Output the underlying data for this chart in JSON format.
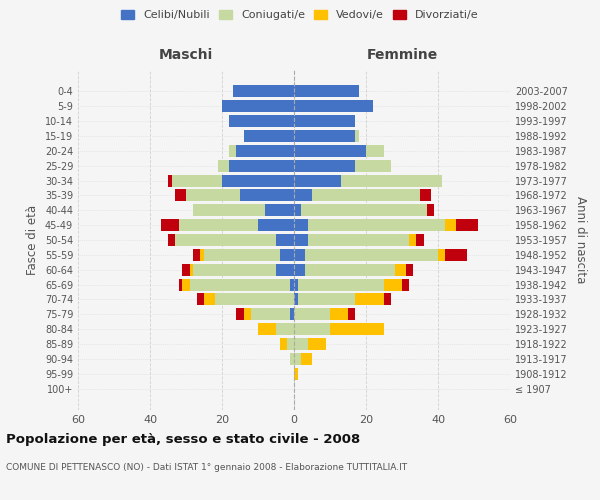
{
  "age_groups": [
    "100+",
    "95-99",
    "90-94",
    "85-89",
    "80-84",
    "75-79",
    "70-74",
    "65-69",
    "60-64",
    "55-59",
    "50-54",
    "45-49",
    "40-44",
    "35-39",
    "30-34",
    "25-29",
    "20-24",
    "15-19",
    "10-14",
    "5-9",
    "0-4"
  ],
  "birth_years": [
    "≤ 1907",
    "1908-1912",
    "1913-1917",
    "1918-1922",
    "1923-1927",
    "1928-1932",
    "1933-1937",
    "1938-1942",
    "1943-1947",
    "1948-1952",
    "1953-1957",
    "1958-1962",
    "1963-1967",
    "1968-1972",
    "1973-1977",
    "1978-1982",
    "1983-1987",
    "1988-1992",
    "1993-1997",
    "1998-2002",
    "2003-2007"
  ],
  "males": {
    "celibi": [
      0,
      0,
      0,
      0,
      0,
      1,
      0,
      1,
      5,
      4,
      5,
      10,
      8,
      15,
      20,
      18,
      16,
      14,
      18,
      20,
      17
    ],
    "coniugati": [
      0,
      0,
      1,
      2,
      5,
      11,
      22,
      28,
      23,
      21,
      28,
      22,
      20,
      15,
      14,
      3,
      2,
      0,
      0,
      0,
      0
    ],
    "vedovi": [
      0,
      0,
      0,
      2,
      5,
      2,
      3,
      2,
      1,
      1,
      0,
      0,
      0,
      0,
      0,
      0,
      0,
      0,
      0,
      0,
      0
    ],
    "divorziati": [
      0,
      0,
      0,
      0,
      0,
      2,
      2,
      1,
      2,
      2,
      2,
      5,
      0,
      3,
      1,
      0,
      0,
      0,
      0,
      0,
      0
    ]
  },
  "females": {
    "nubili": [
      0,
      0,
      0,
      0,
      0,
      0,
      1,
      1,
      3,
      3,
      4,
      4,
      2,
      5,
      13,
      17,
      20,
      17,
      17,
      22,
      18
    ],
    "coniugate": [
      0,
      0,
      2,
      4,
      10,
      10,
      16,
      24,
      25,
      37,
      28,
      38,
      35,
      30,
      28,
      10,
      5,
      1,
      0,
      0,
      0
    ],
    "vedove": [
      0,
      1,
      3,
      5,
      15,
      5,
      8,
      5,
      3,
      2,
      2,
      3,
      0,
      0,
      0,
      0,
      0,
      0,
      0,
      0,
      0
    ],
    "divorziate": [
      0,
      0,
      0,
      0,
      0,
      2,
      2,
      2,
      2,
      6,
      2,
      6,
      2,
      3,
      0,
      0,
      0,
      0,
      0,
      0,
      0
    ]
  },
  "color_celibi": "#4472c4",
  "color_coniugati": "#c5d9a0",
  "color_vedovi": "#ffc000",
  "color_divorziati": "#c0000c",
  "xlim": 60,
  "title": "Popolazione per età, sesso e stato civile - 2008",
  "subtitle": "COMUNE DI PETTENASCO (NO) - Dati ISTAT 1° gennaio 2008 - Elaborazione TUTTITALIA.IT",
  "ylabel": "Fasce di età",
  "ylabel_right": "Anni di nascita",
  "bg_color": "#f5f5f5",
  "grid_color": "#cccccc",
  "maschi_label": "Maschi",
  "femmine_label": "Femmine"
}
